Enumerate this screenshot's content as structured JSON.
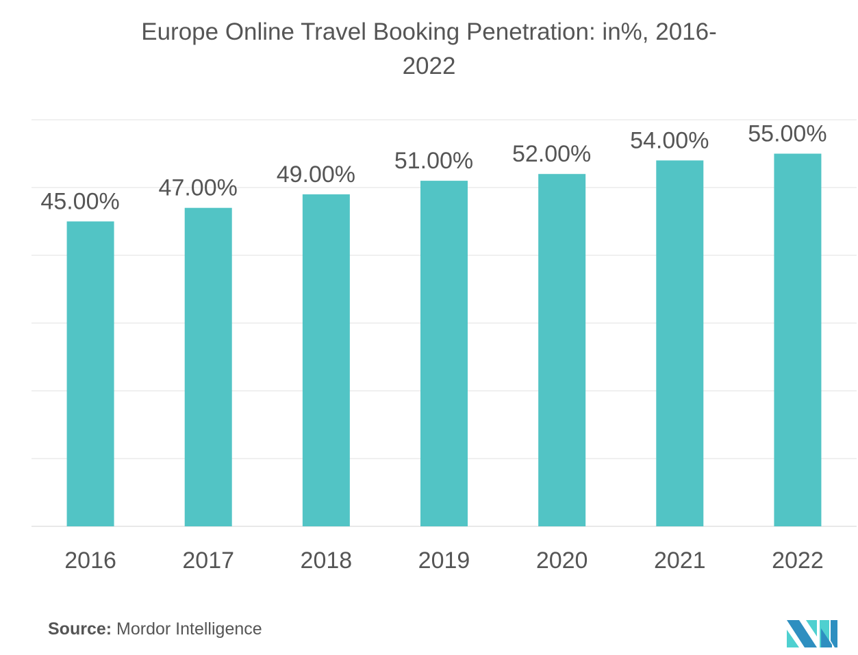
{
  "chart_data": {
    "type": "bar",
    "title": "Europe Online Travel Booking Penetration: in%, 2016-2022",
    "title_lines": [
      "Europe Online Travel Booking Penetration: in%, 2016-",
      "2022"
    ],
    "categories": [
      "2016",
      "2017",
      "2018",
      "2019",
      "2020",
      "2021",
      "2022"
    ],
    "values": [
      45,
      47,
      49,
      51,
      52,
      54,
      55
    ],
    "data_labels": [
      "45.00%",
      "47.00%",
      "49.00%",
      "51.00%",
      "52.00%",
      "54.00%",
      "55.00%"
    ],
    "xlabel": "",
    "ylabel": "",
    "ylim": [
      0,
      60
    ],
    "grid_step": 10,
    "grid": true,
    "bar_color": "#52c4c5"
  },
  "source": {
    "label": "Source:",
    "text": "Mordor Intelligence"
  },
  "logo": {
    "colors": [
      "#2e8fc0",
      "#4fd0d0"
    ]
  }
}
